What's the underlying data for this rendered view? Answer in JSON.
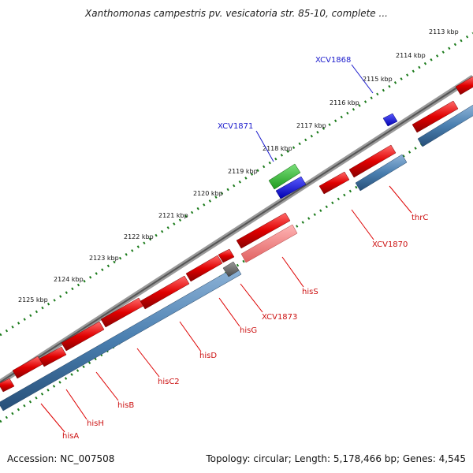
{
  "title": "Xanthomonas campestris pv. vesicatoria str. 85-10, complete ...",
  "footer": {
    "accession": "Accession: NC_007508",
    "summary": "Topology: circular; Length: 5,178,466 bp; Genes: 4,545"
  },
  "ticks": [
    "2113 kbp",
    "2114 kbp",
    "2115 kbp",
    "2116 kbp",
    "2117 kbp",
    "2118 kbp",
    "2119 kbp",
    "2120 kbp",
    "2121 kbp",
    "2122 kbp",
    "2123 kbp",
    "2124 kbp",
    "2125 kbp"
  ],
  "genes_below": [
    "hisA",
    "hisH",
    "hisB",
    "hisC2",
    "hisD",
    "hisG",
    "XCV1873",
    "hisS",
    "XCV1870",
    "thrC"
  ],
  "genes_above": [
    "XCV1871",
    "XCV1868"
  ],
  "colors": {
    "forward_cds": "#e00000",
    "forward_gene": "#4a7fb0",
    "rna": "#ff8080",
    "pseudo": "#707070",
    "reverse_cds": "#1010e0",
    "reverse_gene": "#22bb22",
    "backbone": "#888888",
    "tick_dots": "#1a7a1a"
  }
}
